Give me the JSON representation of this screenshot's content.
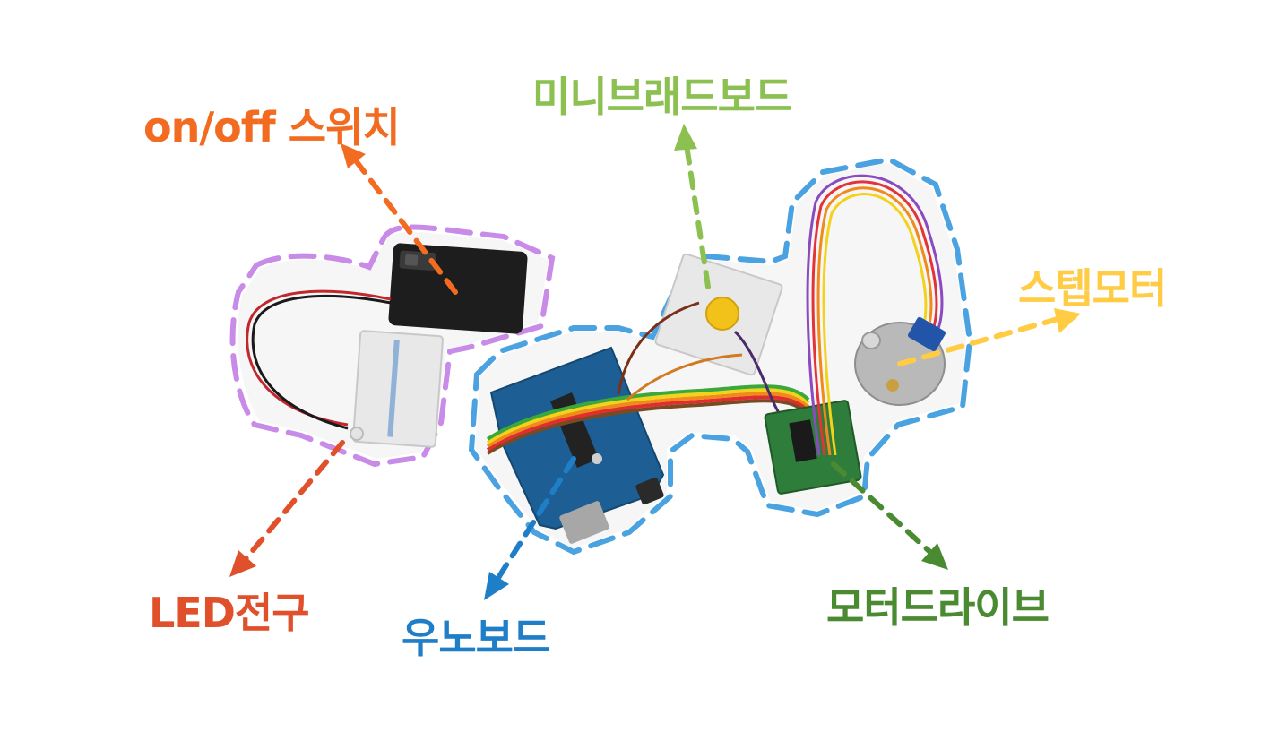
{
  "labels": {
    "switch": "on/off 스위치",
    "mini_breadboard": "미니브래드보드",
    "stepper_motor": "스텝모터",
    "led": "LED전구",
    "uno_board": "우노보드",
    "motor_driver": "모터드라이브"
  },
  "colors": {
    "switch": "#f26b21",
    "mini_breadboard": "#8cc152",
    "stepper_motor": "#ffcc44",
    "led": "#e0502b",
    "uno_board": "#1e7ec8",
    "motor_driver": "#4a8a30",
    "purple_outline": "#c98be8",
    "blue_outline": "#4aa3e0"
  }
}
